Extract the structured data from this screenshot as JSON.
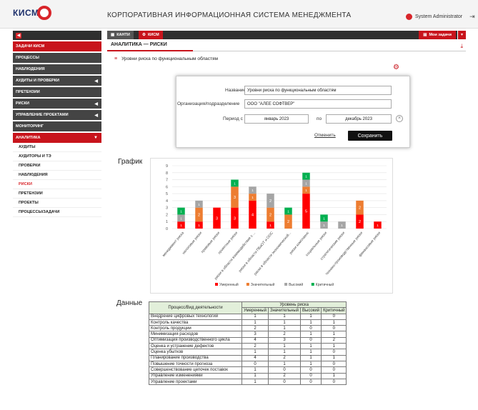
{
  "app": {
    "logo_text": "КИСМ",
    "title": "КОРПОРАТИВНАЯ ИНФОРМАЦИОННАЯ СИСТЕМА МЕНЕДЖМЕНТА",
    "user": "System Administrator"
  },
  "sidebar": {
    "items": [
      {
        "label": "ЗАДАЧИ КИСМ",
        "active": true,
        "arrow": false
      },
      {
        "label": "ПРОЦЕССЫ",
        "active": false,
        "arrow": false
      },
      {
        "label": "НАБЛЮДЕНИЯ",
        "active": false,
        "arrow": false
      },
      {
        "label": "АУДИТЫ И ПРОВЕРКИ",
        "active": false,
        "arrow": true
      },
      {
        "label": "ПРЕТЕНЗИИ",
        "active": false,
        "arrow": false
      },
      {
        "label": "РИСКИ",
        "active": false,
        "arrow": true
      },
      {
        "label": "УПРАВЛЕНИЕ ПРОЕКТАМИ",
        "active": false,
        "arrow": true
      },
      {
        "label": "МОНИТОРИНГ",
        "active": false,
        "arrow": false
      },
      {
        "label": "АНАЛИТИКА",
        "active": true,
        "arrow": true
      }
    ],
    "subitems": [
      {
        "label": "АУДИТЫ",
        "active": false
      },
      {
        "label": "АУДИТОРЫ И ТЭ",
        "active": false
      },
      {
        "label": "ПРОВЕРКИ",
        "active": false
      },
      {
        "label": "НАБЛЮДЕНИЯ",
        "active": false
      },
      {
        "label": "РИСКИ",
        "active": true
      },
      {
        "label": "ПРЕТЕНЗИИ",
        "active": false
      },
      {
        "label": "ПРОЕКТЫ",
        "active": false
      },
      {
        "label": "ПРОЦЕССЫ/ЗАДАЧИ",
        "active": false
      }
    ]
  },
  "tabs": {
    "kanti": "КАНТИ",
    "kism": "КИСМ",
    "my_tasks": "Мои задачи"
  },
  "page": {
    "breadcrumb": "АНАЛИТИКА — РИСКИ",
    "section_title": "Уровни риска по  функциональным областям",
    "graph_heading": "График",
    "data_heading": "Данные"
  },
  "dialog": {
    "name_label": "Название",
    "name_value": "Уровни риска по функциональным областям",
    "org_label": "Организация/подразделение",
    "org_value": "ООО \"АЛЕЕ СОФТВЕР\"",
    "period_label": "Период с",
    "period_from": "январь 2023",
    "to_label": "по",
    "period_to": "декабрь 2023",
    "cancel": "Отменить",
    "save": "Сохранить"
  },
  "colors": {
    "red": "#ff0000",
    "orange": "#ed7d31",
    "gray": "#a5a5a5",
    "green": "#00b050",
    "brand": "#c8141c"
  },
  "chart_data": {
    "type": "bar",
    "stacked": true,
    "categories": [
      "менеджмент риска",
      "налоговые риски",
      "правовые риски",
      "проектные риски",
      "риски в области взаимодействия с ...",
      "риски в области ПБиОТ и ООС",
      "риски в области экономической...",
      "риски комплаенс",
      "социальные риски",
      "стратегические риски",
      "технико-производственные риски",
      "финансовые риски"
    ],
    "series": [
      {
        "name": "Умеренный",
        "color": "#ff0000",
        "values": [
          1,
          1,
          3,
          3,
          4,
          1,
          0,
          5,
          0,
          0,
          2,
          1
        ]
      },
      {
        "name": "Значительный",
        "color": "#ed7d31",
        "values": [
          0,
          2,
          0,
          3,
          1,
          2,
          2,
          1,
          0,
          0,
          2,
          0
        ]
      },
      {
        "name": "Высокий",
        "color": "#a5a5a5",
        "values": [
          1,
          1,
          0,
          0,
          1,
          2,
          0,
          1,
          1,
          1,
          0,
          0
        ]
      },
      {
        "name": "Критичный",
        "color": "#00b050",
        "values": [
          1,
          0,
          0,
          1,
          0,
          0,
          1,
          1,
          1,
          0,
          0,
          0
        ]
      }
    ],
    "ylim": [
      0,
      9
    ],
    "yticks": [
      0,
      1,
      2,
      3,
      4,
      5,
      6,
      7,
      8,
      9
    ],
    "grid": true,
    "legend": "bottom"
  },
  "table": {
    "group_header": "Уровень риска",
    "col_process": "Процесс/Вид деятельности",
    "columns": [
      "Умеренный",
      "Значительный",
      "Высокий",
      "Критичный"
    ],
    "rows": [
      {
        "name": "Внедрение цифровых технологий",
        "values": [
          "1",
          "1",
          "1",
          "0"
        ]
      },
      {
        "name": "Контроль качества",
        "values": [
          "1",
          "1",
          "1",
          "1"
        ]
      },
      {
        "name": "Контроль продукции",
        "values": [
          "2",
          "1",
          "0",
          "0"
        ]
      },
      {
        "name": "Минимизация расходов",
        "values": [
          "3",
          "2",
          "1",
          "1"
        ]
      },
      {
        "name": "Оптимизация производственного цикла",
        "values": [
          "4",
          "3",
          "0",
          "2"
        ]
      },
      {
        "name": "Оценка и устранение дефектов",
        "values": [
          "2",
          "1",
          "1",
          "1"
        ]
      },
      {
        "name": "Оценка убытков",
        "values": [
          "1",
          "1",
          "1",
          "0"
        ]
      },
      {
        "name": "Планирование производства",
        "values": [
          "4",
          "2",
          "1",
          "1"
        ]
      },
      {
        "name": "Повышение точности прогноза",
        "values": [
          "0",
          "1",
          "1",
          "0"
        ]
      },
      {
        "name": "Совершенствование цепочек поставок",
        "values": [
          "1",
          "0",
          "0",
          "0"
        ]
      },
      {
        "name": "Управление изменениями",
        "values": [
          "1",
          "2",
          "0",
          "1"
        ]
      },
      {
        "name": "Управление проектами",
        "values": [
          "1",
          "0",
          "0",
          "0"
        ]
      }
    ]
  }
}
